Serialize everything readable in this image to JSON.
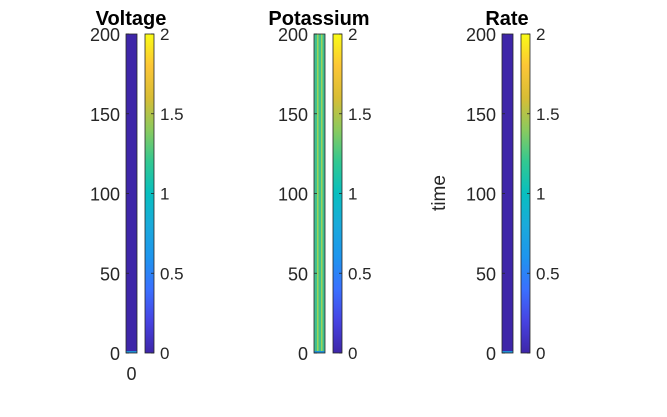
{
  "colors": {
    "parula_min": "#3e26a8",
    "parula_stops": [
      "#3e26a8",
      "#4743e2",
      "#3a70ff",
      "#1e95ee",
      "#1aaadb",
      "#08bfbf",
      "#32c891",
      "#8bca5e",
      "#d8bd35",
      "#fcc636",
      "#f9fb15"
    ],
    "mid_field": "#3fbf8f",
    "mid_field_stripe": "#9cd45a",
    "bottom_stripe": "#1f8fd4"
  },
  "chart_data": [
    {
      "type": "heatmap",
      "title": "Voltage",
      "ylabel": "",
      "yticks": [
        0,
        50,
        100,
        150,
        200
      ],
      "xticks": [
        0
      ],
      "ylim": [
        0,
        200
      ],
      "field": "uniform-low",
      "colorbar": {
        "ticks": [
          0,
          0.5,
          1,
          1.5,
          2
        ],
        "range": [
          0,
          2
        ]
      }
    },
    {
      "type": "heatmap",
      "title": "Potassium",
      "ylabel": "",
      "yticks": [
        0,
        50,
        100,
        150,
        200
      ],
      "xticks": [],
      "ylim": [
        0,
        200
      ],
      "field": "uniform-mid",
      "colorbar": {
        "ticks": [
          0,
          0.5,
          1,
          1.5,
          2
        ],
        "range": [
          0,
          2
        ]
      }
    },
    {
      "type": "heatmap",
      "title": "Rate",
      "ylabel": "time",
      "yticks": [
        0,
        50,
        100,
        150,
        200
      ],
      "xticks": [],
      "ylim": [
        0,
        200
      ],
      "field": "uniform-low",
      "colorbar": {
        "ticks": [
          0,
          0.5,
          1,
          1.5,
          2
        ],
        "range": [
          0,
          2
        ]
      }
    }
  ]
}
